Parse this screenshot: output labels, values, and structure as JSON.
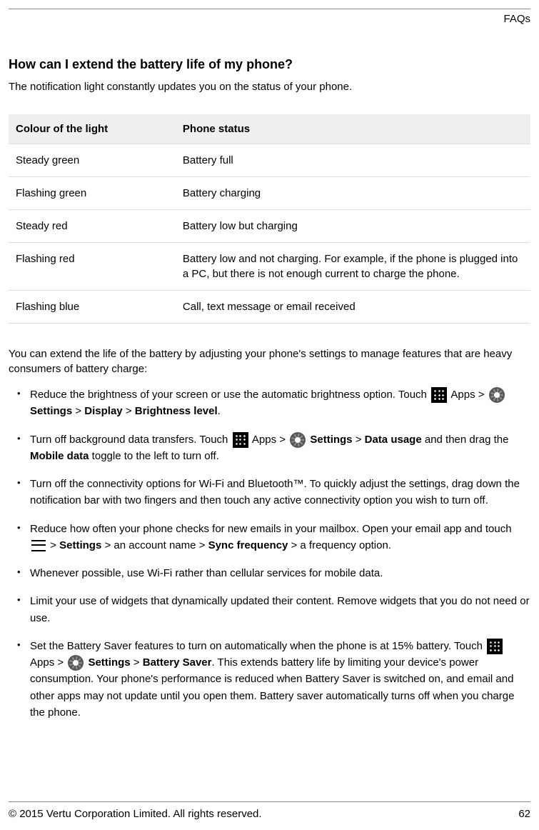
{
  "header": {
    "section": "FAQs"
  },
  "title": "How can I extend the battery life of my phone?",
  "intro": "The notification light constantly updates you on the status of your phone.",
  "table": {
    "headers": {
      "col1": "Colour of the light",
      "col2": "Phone status"
    },
    "rows": [
      {
        "c1": "Steady green",
        "c2": "Battery full"
      },
      {
        "c1": "Flashing green",
        "c2": "Battery charging"
      },
      {
        "c1": "Steady red",
        "c2": "Battery low but charging"
      },
      {
        "c1": "Flashing red",
        "c2": "Battery low and not charging. For example, if the phone is plugged into a PC, but there is not enough current to charge the phone."
      },
      {
        "c1": "Flashing blue",
        "c2": "Call, text message or email received"
      }
    ]
  },
  "body_intro": "You can extend the life of the battery by adjusting your phone's settings to manage features that are heavy consumers of battery charge:",
  "bullets": {
    "b1": {
      "t1": "Reduce the brightness of your screen or use the automatic brightness option. Touch ",
      "apps": " Apps > ",
      "settings": " Settings",
      "sep1": " > ",
      "display": "Display",
      "sep2": " > ",
      "brightness": "Brightness level",
      "end": "."
    },
    "b2": {
      "t1": "Turn off background data transfers. Touch ",
      "apps": " Apps > ",
      "settings": " Settings",
      "sep1": " > ",
      "data": "Data usage",
      "t2": " and then drag the ",
      "mobile": "Mobile data",
      "t3": " toggle to the left to turn off."
    },
    "b3": "Turn off the connectivity options for Wi-Fi and Bluetooth™. To quickly adjust the settings, drag down the notification bar with two fingers and then touch any active connectivity option you wish to turn off.",
    "b4": {
      "t1": "Reduce how often your phone checks for new emails in your mailbox. Open your email app and touch ",
      "sep1": " > ",
      "settings": "Settings",
      "t2": " > an account name > ",
      "sync": "Sync frequency",
      "t3": " > a frequency option."
    },
    "b5": "Whenever possible, use Wi-Fi rather than cellular services for mobile data.",
    "b6": "Limit your use of widgets that dynamically updated their content. Remove widgets that you do not need or use.",
    "b7": {
      "t1": "Set the Battery Saver features to turn on automatically when the phone is at 15% battery. Touch ",
      "apps": " Apps > ",
      "settings": " Settings",
      "sep1": " > ",
      "bs": "Battery  Saver",
      "t2": ". This extends battery life by limiting your device's power consumption. Your phone's performance is reduced when Battery Saver is switched on, and email and other apps may not update until you open them. Battery saver automatically turns off when you charge the phone."
    }
  },
  "footer": {
    "copyright": "© 2015 Vertu Corporation Limited. All rights reserved.",
    "page": "62"
  }
}
